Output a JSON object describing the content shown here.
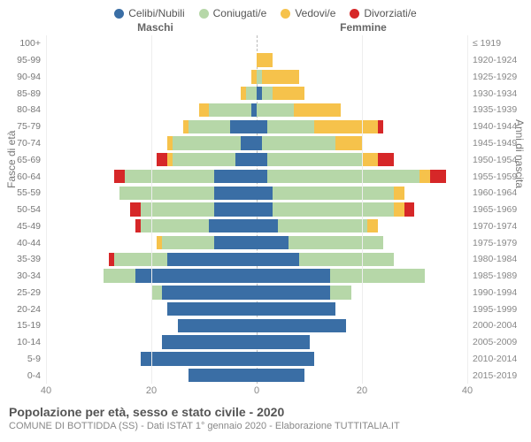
{
  "chart": {
    "type": "population-pyramid",
    "legend": [
      {
        "label": "Celibi/Nubili",
        "color": "#3a6ea5"
      },
      {
        "label": "Coniugati/e",
        "color": "#b6d7a8"
      },
      {
        "label": "Vedovi/e",
        "color": "#f6c24b"
      },
      {
        "label": "Divorziati/e",
        "color": "#d62728"
      }
    ],
    "gender_left": "Maschi",
    "gender_right": "Femmine",
    "yaxis_left_title": "Fasce di età",
    "yaxis_right_title": "Anni di nascita",
    "xmax": 40,
    "xticks": [
      40,
      20,
      0,
      20,
      40
    ],
    "title": "Popolazione per età, sesso e stato civile - 2020",
    "subtitle": "COMUNE DI BOTTIDDA (SS) - Dati ISTAT 1° gennaio 2020 - Elaborazione TUTTITALIA.IT",
    "background_color": "#ffffff",
    "grid_color": "#eeeeee",
    "centerline_color": "#bbbbbb",
    "font_family": "Arial",
    "label_fontsize": 10.5,
    "rows": [
      {
        "age": "100+",
        "birth": "≤ 1919",
        "m": [
          0,
          0,
          0,
          0
        ],
        "f": [
          0,
          0,
          0,
          0
        ]
      },
      {
        "age": "95-99",
        "birth": "1920-1924",
        "m": [
          0,
          0,
          0,
          0
        ],
        "f": [
          0,
          0,
          3,
          0
        ]
      },
      {
        "age": "90-94",
        "birth": "1925-1929",
        "m": [
          0,
          0,
          1,
          0
        ],
        "f": [
          0,
          1,
          7,
          0
        ]
      },
      {
        "age": "85-89",
        "birth": "1930-1934",
        "m": [
          0,
          2,
          1,
          0
        ],
        "f": [
          1,
          2,
          6,
          0
        ]
      },
      {
        "age": "80-84",
        "birth": "1935-1939",
        "m": [
          1,
          8,
          2,
          0
        ],
        "f": [
          0,
          7,
          9,
          0
        ]
      },
      {
        "age": "75-79",
        "birth": "1940-1944",
        "m": [
          5,
          8,
          1,
          0
        ],
        "f": [
          2,
          9,
          12,
          1
        ]
      },
      {
        "age": "70-74",
        "birth": "1945-1949",
        "m": [
          3,
          13,
          1,
          0
        ],
        "f": [
          1,
          14,
          5,
          0
        ]
      },
      {
        "age": "65-69",
        "birth": "1950-1954",
        "m": [
          4,
          12,
          1,
          2
        ],
        "f": [
          2,
          18,
          3,
          3
        ]
      },
      {
        "age": "60-64",
        "birth": "1955-1959",
        "m": [
          8,
          17,
          0,
          2
        ],
        "f": [
          2,
          29,
          2,
          3
        ]
      },
      {
        "age": "55-59",
        "birth": "1960-1964",
        "m": [
          8,
          18,
          0,
          0
        ],
        "f": [
          3,
          23,
          2,
          0
        ]
      },
      {
        "age": "50-54",
        "birth": "1965-1969",
        "m": [
          8,
          14,
          0,
          2
        ],
        "f": [
          3,
          23,
          2,
          2
        ]
      },
      {
        "age": "45-49",
        "birth": "1970-1974",
        "m": [
          9,
          13,
          0,
          1
        ],
        "f": [
          4,
          17,
          2,
          0
        ]
      },
      {
        "age": "40-44",
        "birth": "1975-1979",
        "m": [
          8,
          10,
          1,
          0
        ],
        "f": [
          6,
          18,
          0,
          0
        ]
      },
      {
        "age": "35-39",
        "birth": "1980-1984",
        "m": [
          17,
          10,
          0,
          1
        ],
        "f": [
          8,
          18,
          0,
          0
        ]
      },
      {
        "age": "30-34",
        "birth": "1985-1989",
        "m": [
          23,
          6,
          0,
          0
        ],
        "f": [
          14,
          18,
          0,
          0
        ]
      },
      {
        "age": "25-29",
        "birth": "1990-1994",
        "m": [
          18,
          2,
          0,
          0
        ],
        "f": [
          14,
          4,
          0,
          0
        ]
      },
      {
        "age": "20-24",
        "birth": "1995-1999",
        "m": [
          17,
          0,
          0,
          0
        ],
        "f": [
          15,
          0,
          0,
          0
        ]
      },
      {
        "age": "15-19",
        "birth": "2000-2004",
        "m": [
          15,
          0,
          0,
          0
        ],
        "f": [
          17,
          0,
          0,
          0
        ]
      },
      {
        "age": "10-14",
        "birth": "2005-2009",
        "m": [
          18,
          0,
          0,
          0
        ],
        "f": [
          10,
          0,
          0,
          0
        ]
      },
      {
        "age": "5-9",
        "birth": "2010-2014",
        "m": [
          22,
          0,
          0,
          0
        ],
        "f": [
          11,
          0,
          0,
          0
        ]
      },
      {
        "age": "0-4",
        "birth": "2015-2019",
        "m": [
          13,
          0,
          0,
          0
        ],
        "f": [
          9,
          0,
          0,
          0
        ]
      }
    ]
  }
}
